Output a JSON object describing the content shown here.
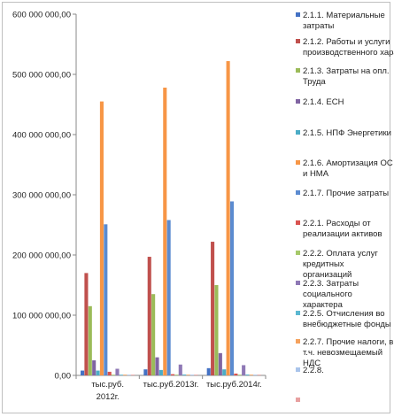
{
  "chart_data": {
    "type": "bar",
    "title": "",
    "xlabel": "",
    "ylabel": "",
    "ylim": [
      0,
      600000000
    ],
    "yticks": [
      0,
      100000000,
      200000000,
      300000000,
      400000000,
      500000000,
      600000000
    ],
    "ytick_labels": [
      "0,00",
      "100 000 000,00",
      "200 000 000,00",
      "300 000 000,00",
      "400 000 000,00",
      "500 000 000,00",
      "600 000 000,00"
    ],
    "grid": false,
    "legend_position": "right",
    "categories": [
      "тыс.руб. 2012г.",
      "тыс.руб.2013г.",
      "тыс.руб.2014г."
    ],
    "category_labels": [
      [
        "тыс.руб.",
        "2012г."
      ],
      [
        "тыс.руб.2013г."
      ],
      [
        "тыс.руб.2014г."
      ]
    ],
    "series": [
      {
        "name": "2.1.1. Материальные затраты",
        "label_lines": [
          "2.1.1. Материальные",
          "затраты"
        ],
        "color": "#4472C4",
        "values": [
          8000000,
          10000000,
          12000000
        ]
      },
      {
        "name": "2.1.2. Работы и услуги производственного характера",
        "label_lines": [
          "2.1.2. Работы и услуги",
          "производственного характера"
        ],
        "color": "#C0504D",
        "values": [
          170000000,
          197000000,
          222000000
        ]
      },
      {
        "name": "2.1.3. Затраты на опл. Труда",
        "label_lines": [
          "2.1.3. Затраты на опл.",
          "Труда"
        ],
        "color": "#9BBB59",
        "values": [
          115000000,
          135000000,
          150000000
        ]
      },
      {
        "name": "2.1.4. ЕСН",
        "label_lines": [
          "2.1.4. ЕСН"
        ],
        "color": "#8064A2",
        "values": [
          25000000,
          30000000,
          37000000
        ]
      },
      {
        "name": "2.1.5. НПФ Энергетики",
        "label_lines": [
          "2.1.5. НПФ Энергетики"
        ],
        "color": "#4BACC6",
        "values": [
          8000000,
          9000000,
          10000000
        ]
      },
      {
        "name": "2.1.6. Амортизация ОС и НМА",
        "label_lines": [
          "2.1.6. Амортизация ОС",
          "и НМА"
        ],
        "color": "#F79646",
        "values": [
          455000000,
          478000000,
          522000000
        ]
      },
      {
        "name": "2.1.7. Прочие затраты",
        "label_lines": [
          "2.1.7. Прочие затраты"
        ],
        "color": "#5B8BD0",
        "values": [
          251000000,
          258000000,
          289000000
        ]
      },
      {
        "name": "2.2.1. Расходы от реализации активов",
        "label_lines": [
          "2.2.1. Расходы от",
          "реализации активов"
        ],
        "color": "#D9534F",
        "values": [
          6000000,
          2000000,
          3000000
        ]
      },
      {
        "name": "2.2.2. Оплата услуг кредитных организаций",
        "label_lines": [
          "2.2.2. Оплата услуг",
          "кредитных",
          "организаций"
        ],
        "color": "#A6C96A",
        "values": [
          1000000,
          1000000,
          1000000
        ]
      },
      {
        "name": "2.2.3. Затраты социального характера",
        "label_lines": [
          "2.2.3. Затраты",
          "социального",
          "характера"
        ],
        "color": "#8E78B5",
        "values": [
          11000000,
          18000000,
          17000000
        ]
      },
      {
        "name": "2.2.5. Отчисления во внебюджетные фонды",
        "label_lines": [
          "2.2.5. Отчисления во",
          "внебюджетные фонды"
        ],
        "color": "#5CB8D1",
        "values": [
          1000000,
          1500000,
          1500000
        ]
      },
      {
        "name": "2.2.7. Прочие налоги, в т.ч. невозмещаемый НДС",
        "label_lines": [
          "2.2.7. Прочие налоги, в",
          "т.ч. невозмещаемый",
          "НДС"
        ],
        "color": "#F5A25D",
        "values": [
          1000000,
          1000000,
          1000000
        ]
      },
      {
        "name": "2.2.8.",
        "label_lines": [
          "2.2.8."
        ],
        "color": "#A9C4EB",
        "values": [
          500000,
          500000,
          500000
        ]
      },
      {
        "name": "",
        "label_lines": [
          ""
        ],
        "color": "#E8A0A0",
        "values": [
          300000,
          300000,
          300000
        ]
      }
    ]
  }
}
